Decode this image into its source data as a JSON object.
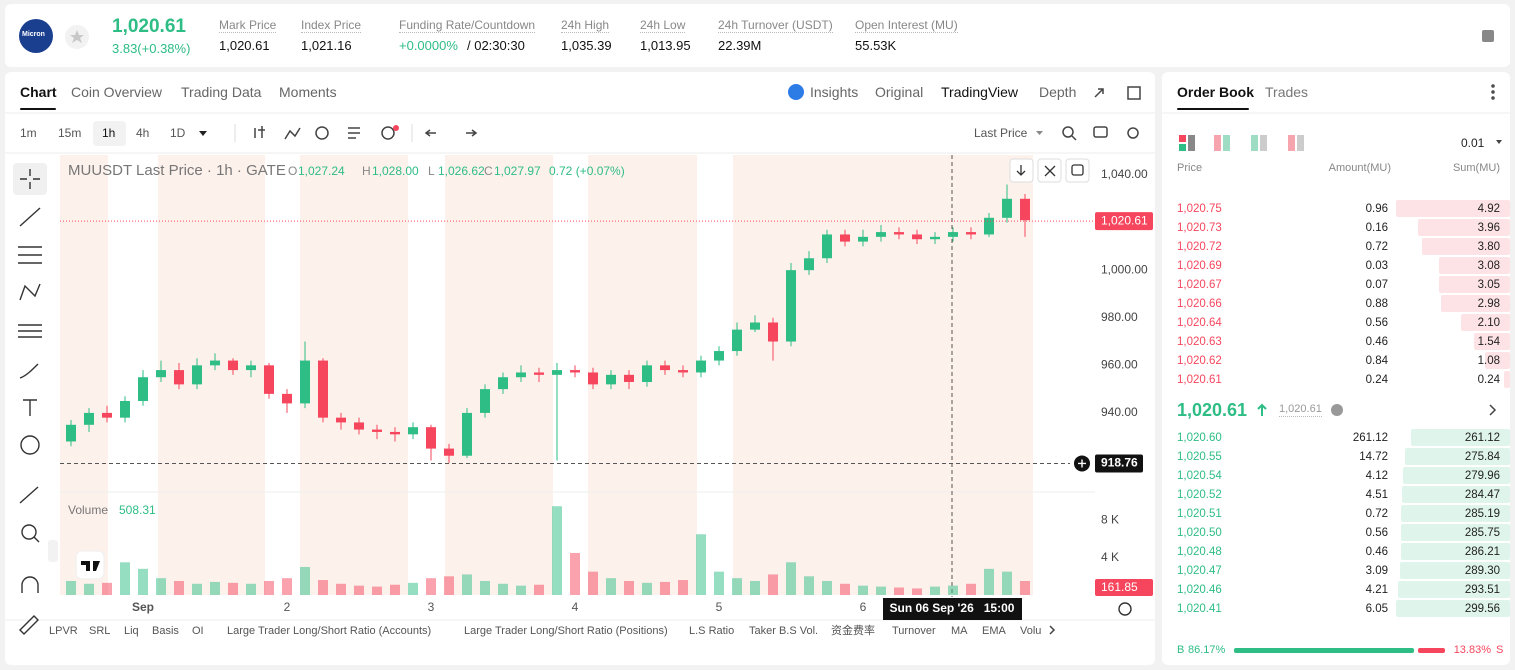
{
  "header": {
    "logo": "Micron",
    "price": "1,020.61",
    "change": "3.83(+0.38%)",
    "stats": [
      {
        "label": "Mark Price",
        "value": "1,020.61"
      },
      {
        "label": "Index Price",
        "value": "1,021.16"
      },
      {
        "label": "Funding Rate/Countdown",
        "value": "+0.0000%",
        "extra": "/ 02:30:30"
      },
      {
        "label": "24h High",
        "value": "1,035.39"
      },
      {
        "label": "24h Low",
        "value": "1,013.95"
      },
      {
        "label": "24h Turnover (USDT)",
        "value": "22.39M"
      },
      {
        "label": "Open Interest (MU)",
        "value": "55.53K"
      }
    ]
  },
  "chart_tabs": [
    "Chart",
    "Coin Overview",
    "Trading Data",
    "Moments"
  ],
  "view_tabs": [
    "Insights",
    "Original",
    "TradingView",
    "Depth"
  ],
  "intervals": [
    "1m",
    "15m",
    "1h",
    "4h",
    "1D"
  ],
  "price_source": "Last Price",
  "indicators": [
    "LPVR",
    "SRL",
    "Liq",
    "Basis",
    "OI",
    "Large Trader Long/Short Ratio (Accounts)",
    "Large Trader Long/Short Ratio (Positions)",
    "L.S Ratio",
    "Taker B.S Vol.",
    "资金费率",
    "Turnover",
    "MA",
    "EMA",
    "Volu"
  ],
  "chart_data": {
    "type": "candlestick",
    "title": "MUUSDT Last Price · 1h · GATE",
    "legend": [
      {
        "key": "O",
        "value": "1,027.24"
      },
      {
        "key": "H",
        "value": "1,028.00"
      },
      {
        "key": "L",
        "value": "1,026.62"
      },
      {
        "key": "C",
        "value": "1,027.97"
      }
    ],
    "legend_change": "0.72 (+0.07%)",
    "up_color": "#2ebd85",
    "down_color": "#f6465d",
    "grid": false,
    "categories": [
      null,
      null,
      null,
      null,
      "Sep",
      null,
      null,
      null,
      null,
      null,
      null,
      null,
      "2",
      null,
      null,
      null,
      null,
      null,
      null,
      null,
      "3",
      null,
      null,
      null,
      null,
      null,
      null,
      null,
      "4",
      null,
      null,
      null,
      null,
      null,
      null,
      null,
      "5",
      null,
      null,
      null,
      null,
      null,
      null,
      null,
      "6",
      null,
      null,
      null,
      null,
      null,
      null,
      null,
      null,
      null
    ],
    "open": [
      928,
      935,
      940,
      938,
      945,
      955,
      958,
      952,
      960,
      962,
      958,
      960,
      948,
      944,
      962,
      938,
      936,
      933,
      932,
      931,
      934,
      925,
      922,
      940,
      950,
      955,
      957,
      956,
      958,
      957,
      952,
      956,
      953,
      960,
      958,
      957,
      962,
      966,
      975,
      978,
      970,
      1000,
      1005,
      1015,
      1012,
      1014,
      1016,
      1015,
      1013,
      1014,
      1016,
      1015,
      1022,
      1030
    ],
    "high": [
      937,
      942,
      943,
      947,
      958,
      962,
      961,
      963,
      965,
      963,
      962,
      961,
      950,
      970,
      963,
      940,
      938,
      935,
      934,
      936,
      935,
      927,
      942,
      952,
      957,
      960,
      959,
      961,
      960,
      959,
      958,
      958,
      962,
      962,
      960,
      964,
      968,
      978,
      981,
      980,
      1003,
      1008,
      1017,
      1017,
      1017,
      1019,
      1018,
      1017,
      1016,
      1018,
      1018,
      1024,
      1036,
      1032
    ],
    "low": [
      926,
      932,
      936,
      936,
      943,
      953,
      950,
      950,
      958,
      956,
      955,
      946,
      940,
      942,
      936,
      933,
      931,
      929,
      928,
      929,
      920,
      919,
      921,
      938,
      948,
      953,
      953,
      920,
      955,
      950,
      950,
      950,
      951,
      956,
      955,
      955,
      960,
      964,
      974,
      962,
      968,
      998,
      1003,
      1010,
      1010,
      1012,
      1013,
      1011,
      1011,
      1012,
      1013,
      1014,
      1020,
      1014
    ],
    "close": [
      935,
      940,
      938,
      945,
      955,
      958,
      952,
      960,
      962,
      958,
      960,
      948,
      944,
      962,
      938,
      936,
      933,
      932,
      931,
      934,
      925,
      922,
      940,
      950,
      955,
      957,
      956,
      958,
      957,
      952,
      956,
      953,
      960,
      958,
      957,
      962,
      966,
      975,
      978,
      970,
      1000,
      1005,
      1015,
      1012,
      1014,
      1016,
      1015,
      1013,
      1014,
      1016,
      1015,
      1022,
      1030,
      1021
    ],
    "volume": [
      1500,
      1200,
      1300,
      3500,
      2800,
      1800,
      1500,
      1200,
      1400,
      1300,
      1200,
      1500,
      1800,
      3000,
      1600,
      1200,
      1000,
      900,
      1100,
      1300,
      1800,
      2000,
      2200,
      1500,
      1200,
      1000,
      1100,
      9500,
      4500,
      2500,
      1800,
      1500,
      1300,
      1400,
      1600,
      6500,
      2500,
      1800,
      1500,
      2200,
      3500,
      2000,
      1500,
      1200,
      1000,
      900,
      800,
      700,
      900,
      1000,
      1200,
      2800,
      2500,
      1500
    ],
    "ylim": [
      907.6,
      1048.4
    ],
    "yticks": [
      {
        "value": 1040,
        "label": "1,040.00"
      },
      {
        "value": 1020,
        "label": "1,020.00"
      },
      {
        "value": 1000,
        "label": "1,000.00"
      },
      {
        "value": 980,
        "label": "980.00"
      },
      {
        "value": 960,
        "label": "960.00"
      },
      {
        "value": 940,
        "label": "940.00"
      }
    ],
    "last_price": {
      "value": 1020.61,
      "label": "1,020.61"
    },
    "crosshair": {
      "value": 918.76,
      "label": "918.76",
      "x_label": "Sun 06 Sep '26   15:00"
    },
    "volume_title": "Volume",
    "volume_value": "508.31",
    "volume_tag": "161.85",
    "volume_ylim": [
      0,
      10700
    ],
    "volume_yticks": [
      {
        "value": 8000,
        "label": "8 K"
      },
      {
        "value": 4000,
        "label": "4 K"
      }
    ]
  },
  "order_book": {
    "tabs": [
      "Order Book",
      "Trades"
    ],
    "tick": "0.01",
    "headers": [
      "Price",
      "Amount(MU)",
      "Sum(MU)"
    ],
    "asks": [
      [
        "1,020.75",
        "0.96",
        "4.92"
      ],
      [
        "1,020.73",
        "0.16",
        "3.96"
      ],
      [
        "1,020.72",
        "0.72",
        "3.80"
      ],
      [
        "1,020.69",
        "0.03",
        "3.08"
      ],
      [
        "1,020.67",
        "0.07",
        "3.05"
      ],
      [
        "1,020.66",
        "0.88",
        "2.98"
      ],
      [
        "1,020.64",
        "0.56",
        "2.10"
      ],
      [
        "1,020.63",
        "0.46",
        "1.54"
      ],
      [
        "1,020.62",
        "0.84",
        "1.08"
      ],
      [
        "1,020.61",
        "0.24",
        "0.24"
      ]
    ],
    "mid_price": "1,020.61",
    "mark_price": "1,020.61",
    "bids": [
      [
        "1,020.60",
        "261.12",
        "261.12"
      ],
      [
        "1,020.55",
        "14.72",
        "275.84"
      ],
      [
        "1,020.54",
        "4.12",
        "279.96"
      ],
      [
        "1,020.52",
        "4.51",
        "284.47"
      ],
      [
        "1,020.51",
        "0.72",
        "285.19"
      ],
      [
        "1,020.50",
        "0.56",
        "285.75"
      ],
      [
        "1,020.48",
        "0.46",
        "286.21"
      ],
      [
        "1,020.47",
        "3.09",
        "289.30"
      ],
      [
        "1,020.46",
        "4.21",
        "293.51"
      ],
      [
        "1,020.41",
        "6.05",
        "299.56"
      ]
    ],
    "buy_label": "B",
    "buy": {
      "value": 86.17,
      "label": "86.17%"
    },
    "sell": {
      "value": 13.83,
      "label": "13.83%"
    },
    "sell_label": "S"
  }
}
